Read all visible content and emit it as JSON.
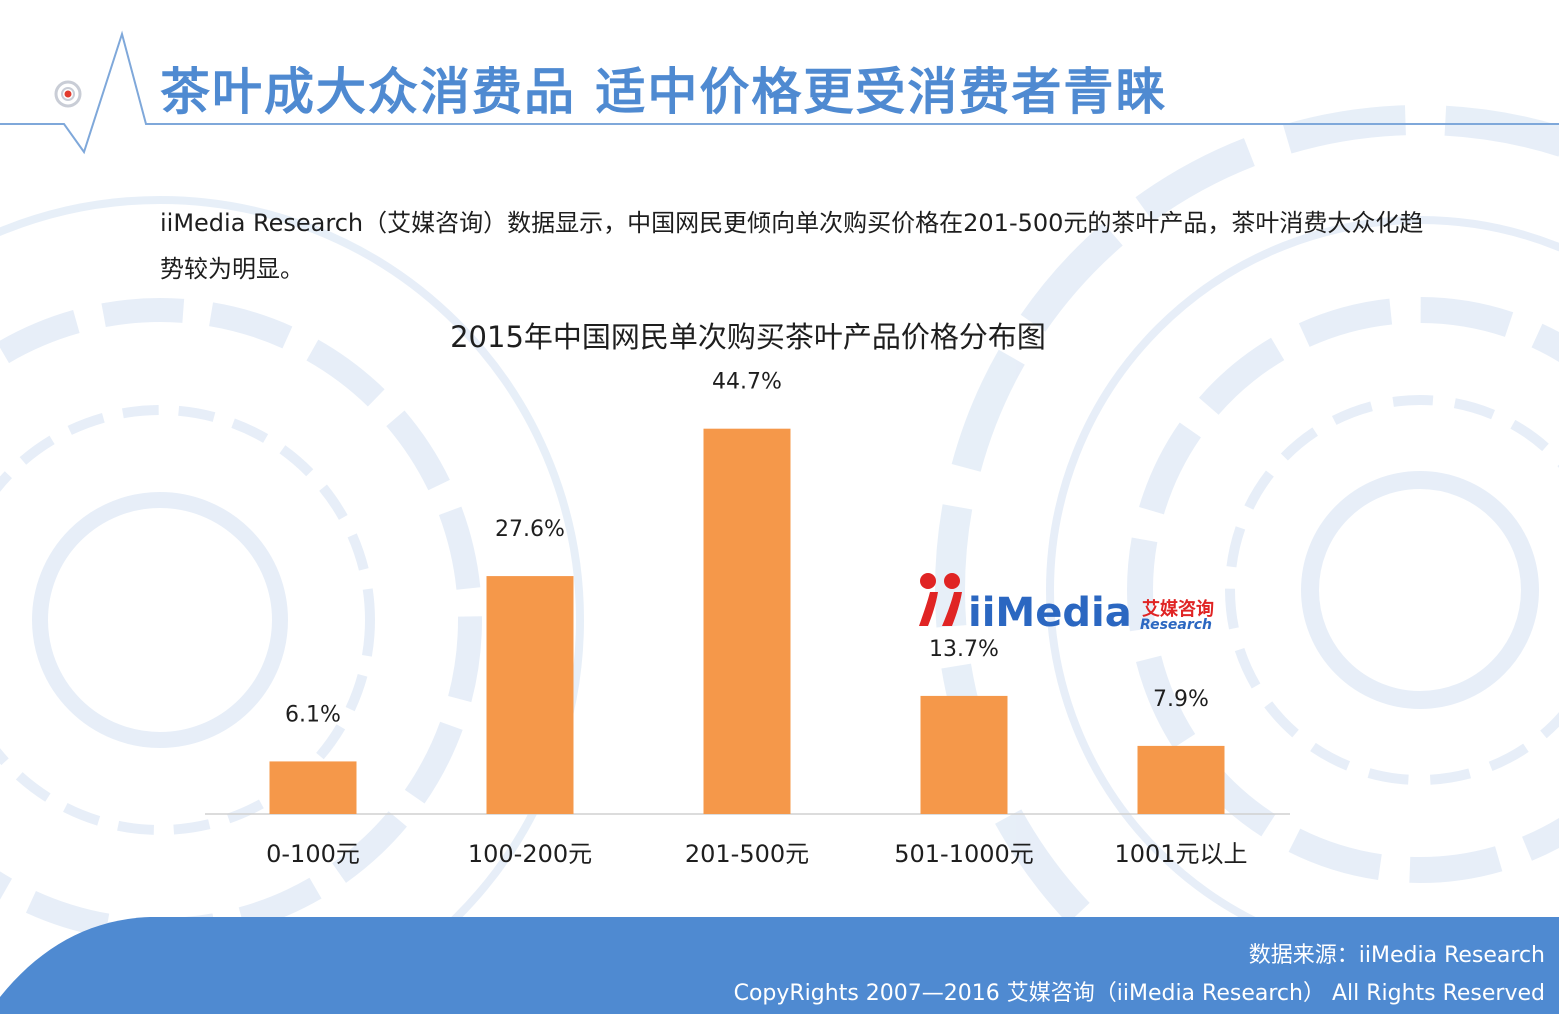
{
  "slide": {
    "title": "茶叶成大众消费品  适中价格更受消费者青睐",
    "intro": "iiMedia Research（艾媒咨询）数据显示，中国网民更倾向单次购买价格在201-500元的茶叶产品，茶叶消费大众化趋势较为明显。"
  },
  "logo": {
    "name": "iiMedia",
    "cn": "艾媒咨询",
    "sub": "Research"
  },
  "footer": {
    "source": "数据来源：iiMedia Research",
    "copyright": "CopyRights 2007—2016 艾媒咨询（iiMedia Research） All Rights Reserved"
  },
  "colors": {
    "bar": "#f5984a",
    "title": "#4f8ad1",
    "footer_band": "#4f8ad1",
    "text": "#1e1e1e"
  },
  "chart_data": {
    "type": "bar",
    "title": "2015年中国网民单次购买茶叶产品价格分布图",
    "categories": [
      "0-100元",
      "100-200元",
      "201-500元",
      "501-1000元",
      "1001元以上"
    ],
    "values": [
      6.1,
      27.6,
      44.7,
      13.7,
      7.9
    ],
    "value_labels": [
      "6.1%",
      "27.6%",
      "44.7%",
      "13.7%",
      "7.9%"
    ],
    "unit": "%",
    "ylim": [
      0,
      50
    ],
    "grid": false,
    "legend": "none"
  }
}
